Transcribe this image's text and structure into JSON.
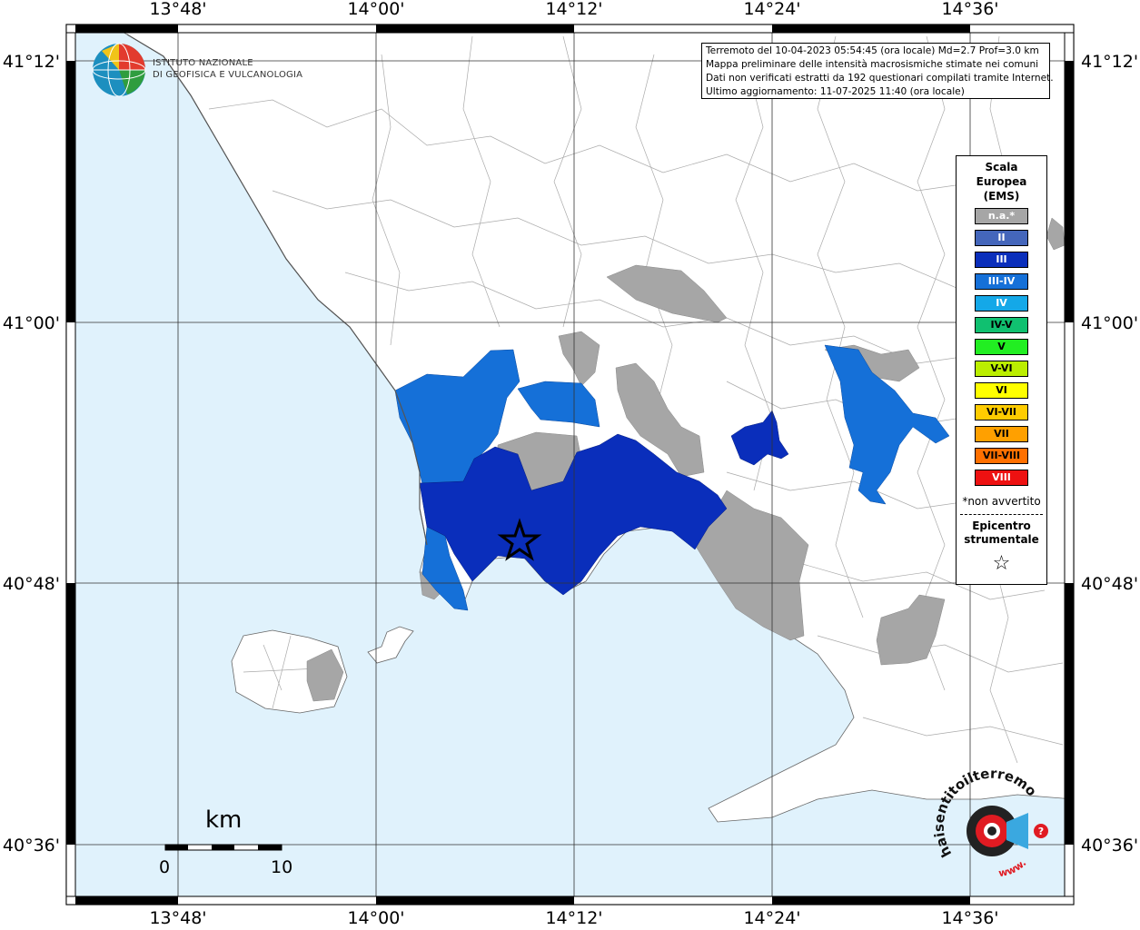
{
  "map": {
    "title_lines": [
      "Terremoto del 10-04-2023 05:54:45 (ora locale) Md=2.7 Prof=3.0 km",
      "Mappa preliminare delle intensità macrosismiche stimate nei comuni",
      "Dati non verificati estratti da 192 questionari compilati tramite Internet.",
      "Ultimo aggiornamento: 11-07-2025 11:40 (ora locale)"
    ],
    "lon_ticks": [
      "13°48'",
      "14°00'",
      "14°12'",
      "14°24'",
      "14°36'"
    ],
    "lat_ticks": [
      "41°12'",
      "41°00'",
      "40°48'",
      "40°36'"
    ],
    "sea_color": "#e0f2fc",
    "land_color": "#ffffff"
  },
  "logo": {
    "line1": "ISTITUTO NAZIONALE",
    "line2": "DI GEOFISICA E VULCANOLOGIA"
  },
  "legend": {
    "title_lines": [
      "Scala",
      "Europea",
      "(EMS)"
    ],
    "items": [
      {
        "label": "n.a.*",
        "color": "#a6a6a6",
        "text_color": "#ffffff"
      },
      {
        "label": "II",
        "color": "#4466bb",
        "text_color": "#ffffff"
      },
      {
        "label": "III",
        "color": "#0a2ebb",
        "text_color": "#ffffff"
      },
      {
        "label": "III-IV",
        "color": "#1570d8",
        "text_color": "#ffffff"
      },
      {
        "label": "IV",
        "color": "#14a8e8",
        "text_color": "#ffffff"
      },
      {
        "label": "IV-V",
        "color": "#10c070",
        "text_color": "#000000"
      },
      {
        "label": "V",
        "color": "#22ee22",
        "text_color": "#000000"
      },
      {
        "label": "V-VI",
        "color": "#bbee00",
        "text_color": "#000000"
      },
      {
        "label": "VI",
        "color": "#ffff00",
        "text_color": "#000000"
      },
      {
        "label": "VI-VII",
        "color": "#ffcc00",
        "text_color": "#000000"
      },
      {
        "label": "VII",
        "color": "#ffa000",
        "text_color": "#000000"
      },
      {
        "label": "VII-VIII",
        "color": "#ff7000",
        "text_color": "#000000"
      },
      {
        "label": "VIII",
        "color": "#ee1111",
        "text_color": "#ffffff"
      }
    ],
    "note": "*non avvertito",
    "epicenter_lines": [
      "Epicentro",
      "strumentale"
    ],
    "epicenter_symbol": "☆"
  },
  "scale_bar": {
    "unit": "km",
    "min": "0",
    "max": "10"
  },
  "hst_logo": {
    "text": "haisentitoilterremoto.it",
    "url_text": "www."
  }
}
